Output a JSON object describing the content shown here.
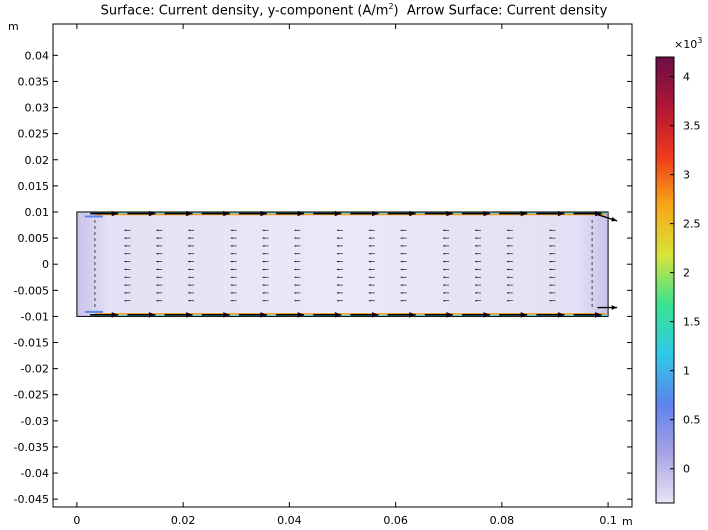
{
  "title": {
    "surface_label": "Surface: Current density, y-component (A/m",
    "surface_sup": "2",
    "surface_close": ")",
    "arrow_label": "Arrow Surface: Current density"
  },
  "chart_data": {
    "type": "heatmap",
    "x": {
      "unit": "m",
      "range": [
        -0.0045,
        0.1045
      ],
      "ticks": [
        0,
        0.02,
        0.04,
        0.06,
        0.08,
        0.1
      ],
      "tick_labels": [
        "0",
        "0.02",
        "0.04",
        "0.06",
        "0.08",
        "0.1"
      ]
    },
    "y": {
      "unit": "m",
      "range": [
        -0.0465,
        0.046
      ],
      "ticks": [
        0.04,
        0.035,
        0.03,
        0.025,
        0.02,
        0.015,
        0.01,
        0.005,
        0,
        -0.005,
        -0.01,
        -0.015,
        -0.02,
        -0.025,
        -0.03,
        -0.035,
        -0.04,
        -0.045
      ],
      "tick_labels": [
        "0.04",
        "0.035",
        "0.03",
        "0.025",
        "0.02",
        "0.015",
        "0.01",
        "0.005",
        "0",
        "-0.005",
        "-0.01",
        "-0.015",
        "-0.02",
        "-0.025",
        "-0.03",
        "-0.035",
        "-0.04",
        "-0.045"
      ]
    },
    "domain": {
      "x": [
        0,
        0.1
      ],
      "y": [
        -0.01,
        0.01
      ]
    },
    "colorbar": {
      "multiplier": "×10",
      "exponent": "3",
      "range": [
        -0.35,
        4.2
      ],
      "ticks": [
        0,
        0.5,
        1,
        1.5,
        2,
        2.5,
        3,
        3.5,
        4
      ],
      "tick_labels": [
        "0",
        "0.5",
        "1",
        "1.5",
        "2",
        "2.5",
        "3",
        "3.5",
        "4"
      ],
      "colors": [
        "#e8e4f4",
        "#a7a2e5",
        "#5e82ee",
        "#2fc9e9",
        "#39e391",
        "#d7e43a",
        "#f8a717",
        "#ef3a1b",
        "#b01535",
        "#6b0f46"
      ]
    },
    "arrow_rows_y": [
      0.0097,
      -0.0097
    ],
    "arrow_columns_x": [
      0.0025,
      0.0095,
      0.0165,
      0.0235,
      0.0305,
      0.0375,
      0.0445,
      0.0515,
      0.0585,
      0.0655,
      0.0725,
      0.0795,
      0.0865,
      0.0935
    ],
    "inner_arrow_columns_x": [
      0.0095,
      0.0155,
      0.0215,
      0.0295,
      0.0355,
      0.0415,
      0.0495,
      0.0555,
      0.0615,
      0.0695,
      0.0755,
      0.0815,
      0.0895
    ],
    "inner_arrow_rows_y": [
      0.0065,
      0.005,
      0.0035,
      0.002,
      0.0005,
      -0.001,
      -0.0025,
      -0.004,
      -0.0055,
      -0.007
    ]
  }
}
